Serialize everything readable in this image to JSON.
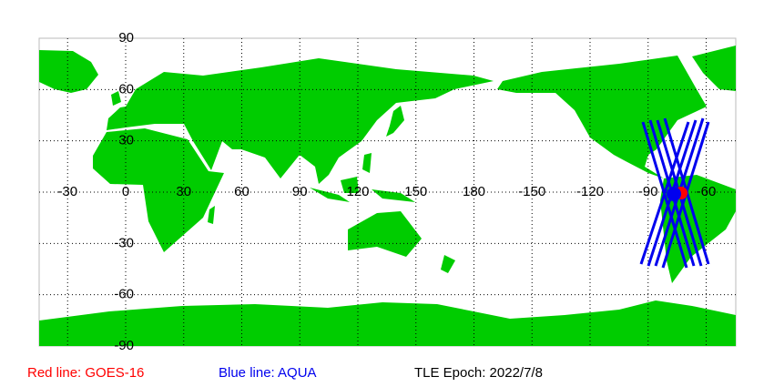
{
  "map": {
    "lon_labels": [
      "-30",
      "0",
      "30",
      "60",
      "90",
      "120",
      "150",
      "180",
      "-150",
      "-120",
      "-90",
      "-60"
    ],
    "lat_labels": [
      "90",
      "60",
      "30",
      "-30",
      "-60",
      "-90"
    ],
    "legend": {
      "red": "Red line: GOES-16",
      "blue": "Blue line: AQUA",
      "epoch": "TLE Epoch: 2022/7/8"
    }
  }
}
